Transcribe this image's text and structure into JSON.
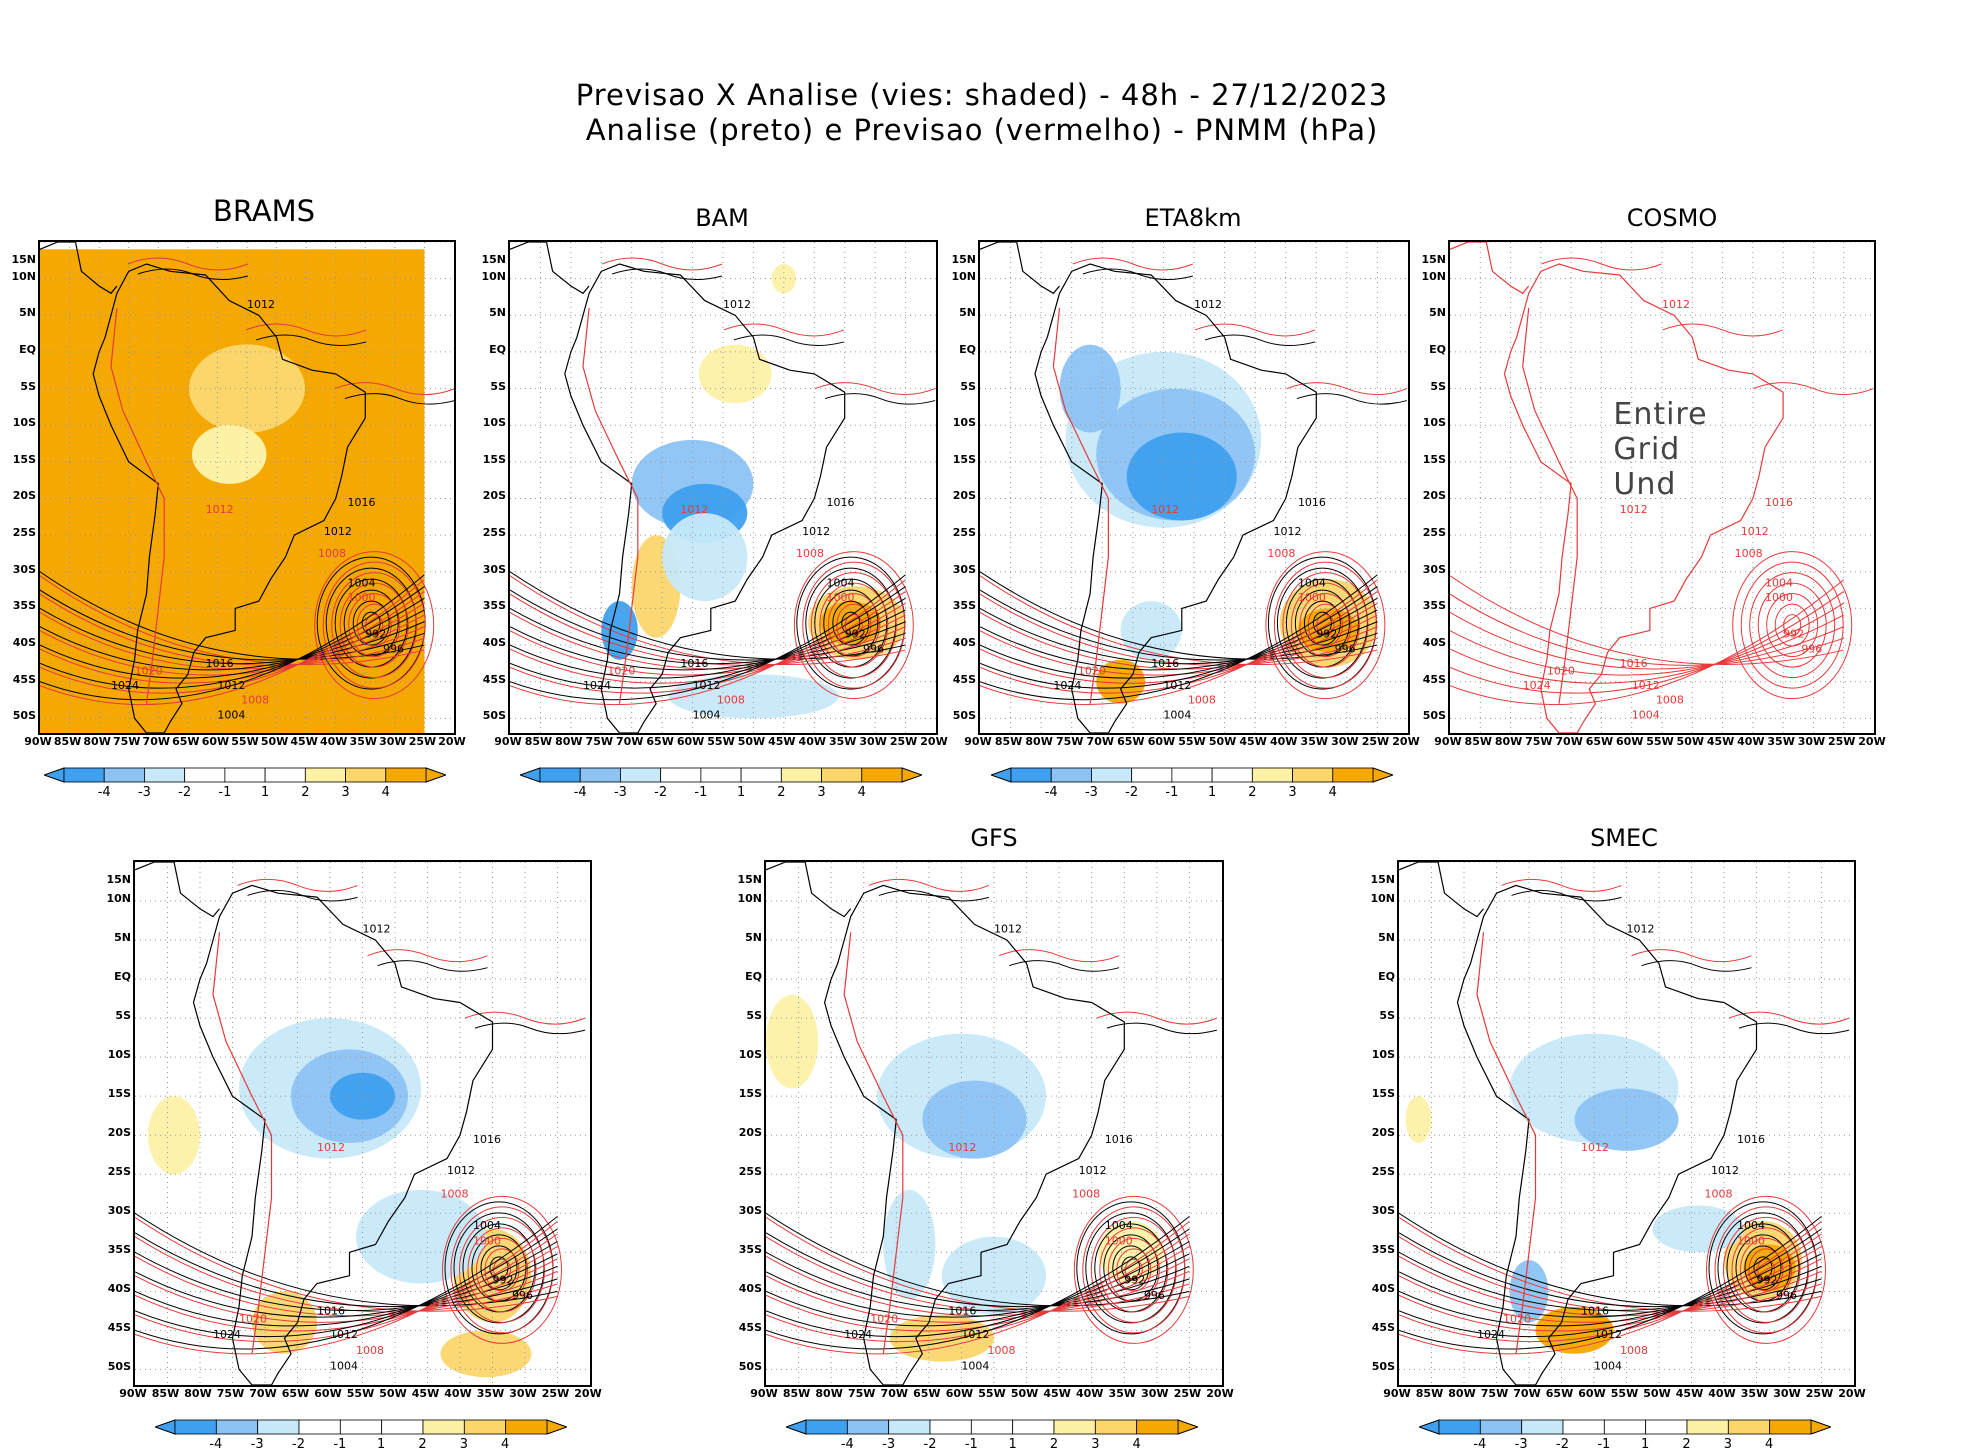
{
  "header": {
    "line1": "Previsao X Analise (vies: shaded) - 48h - 27/12/2023",
    "line2": "Analise (preto) e Previsao (vermelho) - PNMM (hPa)"
  },
  "colors": {
    "neg4": "#3fa0ef",
    "neg3": "#8cc3f4",
    "neg2": "#c7e9f9",
    "neg1": "#ffffff",
    "pos1": "#ffffff",
    "pos2": "#fdf1a6",
    "pos3": "#fbd66b",
    "pos4": "#f5a800",
    "analysis": "#000000",
    "forecast": "#e8393a",
    "grid": "#999999"
  },
  "axes": {
    "lat_labels": [
      "15N",
      "10N",
      "5N",
      "EQ",
      "5S",
      "10S",
      "15S",
      "20S",
      "25S",
      "30S",
      "35S",
      "40S",
      "45S",
      "50S"
    ],
    "lon_labels": [
      "90W",
      "85W",
      "80W",
      "75W",
      "70W",
      "65W",
      "60W",
      "55W",
      "50W",
      "45W",
      "40W",
      "35W",
      "30W",
      "25W",
      "20W"
    ]
  },
  "colorbar": {
    "ticks": [
      "-4",
      "-3",
      "-2",
      "-1",
      "1",
      "2",
      "3",
      "4"
    ]
  },
  "panels": [
    {
      "name": "BRAMS",
      "title": "BRAMS",
      "bias": "brams",
      "has_colorbar": true
    },
    {
      "name": "BAM",
      "title": "BAM",
      "bias": "bam",
      "has_colorbar": true
    },
    {
      "name": "ETA8km",
      "title": "ETA8km",
      "bias": "eta",
      "has_colorbar": true
    },
    {
      "name": "COSMO",
      "title": "COSMO",
      "bias": "none",
      "has_colorbar": false,
      "notice": "Entire Grid Und"
    },
    {
      "name": "GFS-left",
      "title": "",
      "bias": "gfs1",
      "has_colorbar": true
    },
    {
      "name": "GFS",
      "title": "GFS",
      "bias": "gfs2",
      "has_colorbar": true
    },
    {
      "name": "SMEC",
      "title": "SMEC",
      "bias": "smec",
      "has_colorbar": true
    }
  ],
  "isobar_labels": {
    "analysis": [
      "1012",
      "1016",
      "1020",
      "1024",
      "1008",
      "1004",
      "1000",
      "996",
      "992"
    ],
    "forecast": [
      "1012",
      "1016",
      "1020",
      "1024",
      "1008",
      "1004",
      "1000",
      "996",
      "992",
      "988"
    ]
  }
}
